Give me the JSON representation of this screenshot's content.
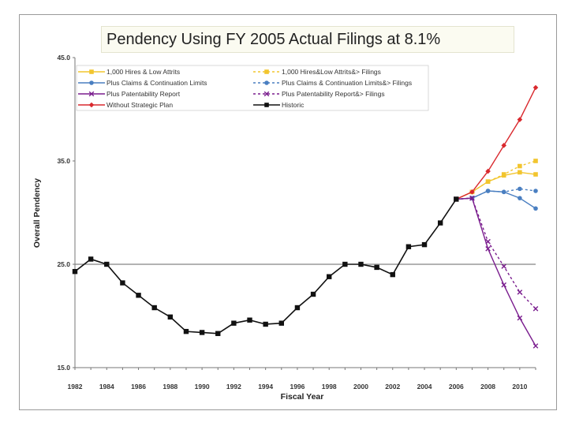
{
  "chart_data": {
    "type": "line",
    "title": "Pendency Using FY 2005 Actual Filings at 8.1%",
    "xlabel": "Fiscal Year",
    "ylabel": "Overall Pendency",
    "xlim": [
      1982,
      2011
    ],
    "ylim": [
      15,
      45
    ],
    "yticks": [
      "15.0",
      "25.0",
      "35.0",
      "45.0"
    ],
    "yticks_values": [
      15,
      25,
      35,
      45
    ],
    "xticks": [
      1982,
      1984,
      1986,
      1988,
      1990,
      1992,
      1994,
      1996,
      1998,
      2000,
      2002,
      2004,
      2006,
      2008,
      2010
    ],
    "reference_line_y": 25,
    "legend_position": "top-left",
    "series": [
      {
        "name": "1,000 Hires & Low Attrits",
        "color": "#f2c52e",
        "dashed": false,
        "marker": "square",
        "points": [
          [
            2006,
            31.3
          ],
          [
            2007,
            32.0
          ],
          [
            2008,
            33.0
          ],
          [
            2009,
            33.6
          ],
          [
            2010,
            33.9
          ],
          [
            2011,
            33.7
          ]
        ]
      },
      {
        "name": "1,000 Hires&Low Attrits&> Filings",
        "color": "#f2c52e",
        "dashed": true,
        "marker": "square",
        "points": [
          [
            2006,
            31.3
          ],
          [
            2007,
            32.0
          ],
          [
            2008,
            33.0
          ],
          [
            2009,
            33.7
          ],
          [
            2010,
            34.5
          ],
          [
            2011,
            35.0
          ]
        ]
      },
      {
        "name": "Plus Claims & Continuation Limits",
        "color": "#4a7fc1",
        "dashed": false,
        "marker": "circle",
        "points": [
          [
            2006,
            31.3
          ],
          [
            2007,
            31.4
          ],
          [
            2008,
            32.1
          ],
          [
            2009,
            32.0
          ],
          [
            2010,
            31.4
          ],
          [
            2011,
            30.4
          ]
        ]
      },
      {
        "name": "Plus Claims & Continuation Limits&> Filings",
        "color": "#4a7fc1",
        "dashed": true,
        "marker": "circle",
        "points": [
          [
            2006,
            31.3
          ],
          [
            2007,
            31.4
          ],
          [
            2008,
            32.1
          ],
          [
            2009,
            32.0
          ],
          [
            2010,
            32.3
          ],
          [
            2011,
            32.1
          ]
        ]
      },
      {
        "name": "Plus Patentability Report",
        "color": "#7a1d8e",
        "dashed": false,
        "marker": "x",
        "points": [
          [
            2006,
            31.3
          ],
          [
            2007,
            31.4
          ],
          [
            2008,
            26.5
          ],
          [
            2009,
            23.0
          ],
          [
            2010,
            19.8
          ],
          [
            2011,
            17.1
          ]
        ]
      },
      {
        "name": "Plus Patentability Report&> Filings",
        "color": "#7a1d8e",
        "dashed": true,
        "marker": "x",
        "points": [
          [
            2006,
            31.3
          ],
          [
            2007,
            31.4
          ],
          [
            2008,
            27.2
          ],
          [
            2009,
            24.8
          ],
          [
            2010,
            22.3
          ],
          [
            2011,
            20.7
          ]
        ]
      },
      {
        "name": "Without Strategic Plan",
        "color": "#d9292e",
        "dashed": false,
        "marker": "diamond",
        "points": [
          [
            2006,
            31.3
          ],
          [
            2007,
            32.0
          ],
          [
            2008,
            34.0
          ],
          [
            2009,
            36.5
          ],
          [
            2010,
            39.0
          ],
          [
            2011,
            42.1
          ]
        ]
      },
      {
        "name": "Historic",
        "color": "#111111",
        "dashed": false,
        "marker": "square",
        "points": [
          [
            1982,
            24.3
          ],
          [
            1983,
            25.5
          ],
          [
            1984,
            25.0
          ],
          [
            1985,
            23.2
          ],
          [
            1986,
            22.0
          ],
          [
            1987,
            20.8
          ],
          [
            1988,
            19.9
          ],
          [
            1989,
            18.5
          ],
          [
            1990,
            18.4
          ],
          [
            1991,
            18.3
          ],
          [
            1992,
            19.3
          ],
          [
            1993,
            19.6
          ],
          [
            1994,
            19.2
          ],
          [
            1995,
            19.3
          ],
          [
            1996,
            20.8
          ],
          [
            1997,
            22.1
          ],
          [
            1998,
            23.8
          ],
          [
            1999,
            25.0
          ],
          [
            2000,
            25.0
          ],
          [
            2001,
            24.7
          ],
          [
            2002,
            24.0
          ],
          [
            2003,
            26.7
          ],
          [
            2004,
            26.9
          ],
          [
            2005,
            29.0
          ],
          [
            2006,
            31.3
          ]
        ]
      }
    ]
  }
}
